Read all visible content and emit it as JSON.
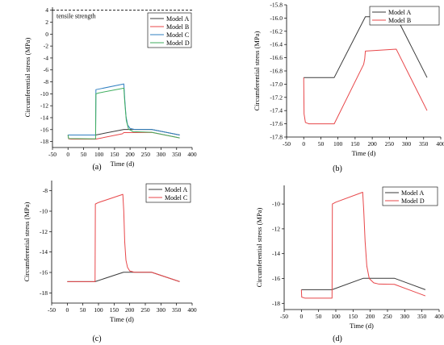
{
  "chart_data": [
    {
      "panel": "(a)",
      "type": "line",
      "xlabel": "Time (d)",
      "ylabel": "Circumferential stress (MPa)",
      "xlim": [
        -50,
        400
      ],
      "ylim": [
        -19,
        4.5
      ],
      "xticks": [
        -50,
        0,
        50,
        100,
        150,
        200,
        250,
        300,
        350,
        400
      ],
      "yticks": [
        4,
        2,
        0,
        -2,
        -4,
        -6,
        -8,
        -10,
        -12,
        -14,
        -16,
        -18
      ],
      "legend": "top-right",
      "annotation": {
        "text": "tensile strength",
        "y": 4
      },
      "series": [
        {
          "name": "Model A",
          "color": "#3a3a3a",
          "points": [
            [
              0,
              -16.9
            ],
            [
              89,
              -16.9
            ],
            [
              180,
              -15.98
            ],
            [
              270,
              -15.98
            ],
            [
              360,
              -16.9
            ]
          ]
        },
        {
          "name": "Model B",
          "color": "#e8474a",
          "points": [
            [
              0,
              -16.9
            ],
            [
              2,
              -17.55
            ],
            [
              10,
              -17.6
            ],
            [
              89,
              -17.6
            ],
            [
              175,
              -16.7
            ],
            [
              180,
              -16.5
            ],
            [
              270,
              -16.47
            ],
            [
              360,
              -17.4
            ]
          ]
        },
        {
          "name": "Model C",
          "color": "#2f7fc1",
          "points": [
            [
              0,
              -16.9
            ],
            [
              89,
              -16.9
            ],
            [
              90,
              -9.3
            ],
            [
              100,
              -9.2
            ],
            [
              180,
              -8.35
            ],
            [
              183,
              -11
            ],
            [
              187,
              -13.8
            ],
            [
              192,
              -15.2
            ],
            [
              200,
              -15.8
            ],
            [
              215,
              -15.98
            ],
            [
              270,
              -15.98
            ],
            [
              360,
              -16.9
            ]
          ]
        },
        {
          "name": "Model D",
          "color": "#3fae5e",
          "points": [
            [
              0,
              -16.9
            ],
            [
              2,
              -17.5
            ],
            [
              89,
              -17.55
            ],
            [
              90,
              -10
            ],
            [
              100,
              -9.85
            ],
            [
              180,
              -9.05
            ],
            [
              183,
              -11.5
            ],
            [
              188,
              -14.5
            ],
            [
              195,
              -15.9
            ],
            [
              210,
              -16.35
            ],
            [
              270,
              -16.45
            ],
            [
              360,
              -17.4
            ]
          ]
        }
      ]
    },
    {
      "panel": "(b)",
      "type": "line",
      "xlabel": "Time (d)",
      "ylabel": "Circumferential stress (MPa)",
      "xlim": [
        -50,
        400
      ],
      "ylim": [
        -17.8,
        -15.8
      ],
      "xticks": [
        -50,
        0,
        50,
        100,
        150,
        200,
        250,
        300,
        350,
        400
      ],
      "yticks": [
        -15.8,
        -16.0,
        -16.2,
        -16.4,
        -16.6,
        -16.8,
        -17.0,
        -17.2,
        -17.4,
        -17.6,
        -17.8
      ],
      "legend": "top-right",
      "series": [
        {
          "name": "Model A",
          "color": "#3a3a3a",
          "points": [
            [
              0,
              -16.9
            ],
            [
              89,
              -16.9
            ],
            [
              180,
              -15.98
            ],
            [
              270,
              -15.98
            ],
            [
              360,
              -16.9
            ]
          ]
        },
        {
          "name": "Model B",
          "color": "#e8474a",
          "points": [
            [
              0,
              -16.9
            ],
            [
              1,
              -17.45
            ],
            [
              5,
              -17.58
            ],
            [
              15,
              -17.6
            ],
            [
              89,
              -17.6
            ],
            [
              175,
              -16.7
            ],
            [
              178,
              -16.62
            ],
            [
              180,
              -16.5
            ],
            [
              270,
              -16.47
            ],
            [
              360,
              -17.4
            ]
          ]
        }
      ]
    },
    {
      "panel": "(c)",
      "type": "line",
      "xlabel": "Time (d)",
      "ylabel": "Circumferential stress (MPa)",
      "xlim": [
        -50,
        400
      ],
      "ylim": [
        -19,
        -7
      ],
      "xticks": [
        -50,
        0,
        50,
        100,
        150,
        200,
        250,
        300,
        350,
        400
      ],
      "yticks": [
        -8,
        -10,
        -12,
        -14,
        -16,
        -18
      ],
      "legend": "top-right",
      "series": [
        {
          "name": "Model A",
          "color": "#3a3a3a",
          "points": [
            [
              0,
              -16.9
            ],
            [
              89,
              -16.9
            ],
            [
              180,
              -15.98
            ],
            [
              270,
              -15.98
            ],
            [
              360,
              -16.9
            ]
          ]
        },
        {
          "name": "Model C",
          "color": "#e8474a",
          "points": [
            [
              0,
              -16.9
            ],
            [
              89,
              -16.9
            ],
            [
              90,
              -9.3
            ],
            [
              100,
              -9.15
            ],
            [
              178,
              -8.35
            ],
            [
              181,
              -10
            ],
            [
              184,
              -13
            ],
            [
              188,
              -14.8
            ],
            [
              193,
              -15.5
            ],
            [
              200,
              -15.85
            ],
            [
              215,
              -15.98
            ],
            [
              270,
              -15.98
            ],
            [
              360,
              -16.9
            ]
          ]
        }
      ]
    },
    {
      "panel": "(d)",
      "type": "line",
      "xlabel": "Time (d)",
      "ylabel": "Circumferential stress (MPa)",
      "xlim": [
        -50,
        400
      ],
      "ylim": [
        -18.5,
        -8.5
      ],
      "xticks": [
        -50,
        0,
        50,
        100,
        150,
        200,
        250,
        300,
        350,
        400
      ],
      "yticks": [
        -10,
        -12,
        -14,
        -16,
        -18
      ],
      "legend": "top-right",
      "series": [
        {
          "name": "Model A",
          "color": "#3a3a3a",
          "points": [
            [
              0,
              -16.9
            ],
            [
              89,
              -16.9
            ],
            [
              180,
              -15.98
            ],
            [
              270,
              -15.98
            ],
            [
              360,
              -16.9
            ]
          ]
        },
        {
          "name": "Model D",
          "color": "#e8474a",
          "points": [
            [
              0,
              -16.9
            ],
            [
              1,
              -17.5
            ],
            [
              10,
              -17.58
            ],
            [
              89,
              -17.58
            ],
            [
              90,
              -10
            ],
            [
              100,
              -9.85
            ],
            [
              178,
              -9.05
            ],
            [
              181,
              -10.5
            ],
            [
              185,
              -13
            ],
            [
              190,
              -15
            ],
            [
              197,
              -16
            ],
            [
              210,
              -16.35
            ],
            [
              225,
              -16.45
            ],
            [
              270,
              -16.47
            ],
            [
              360,
              -17.4
            ]
          ]
        }
      ]
    }
  ]
}
